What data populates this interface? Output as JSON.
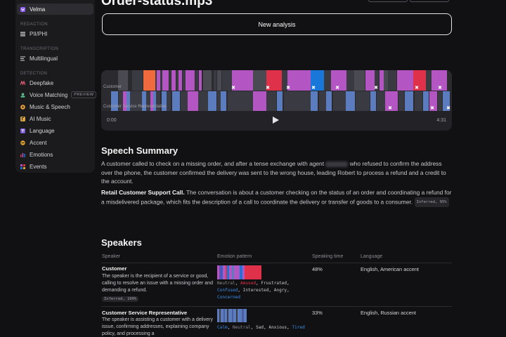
{
  "file_title": "Order-status.mp3",
  "sidebar": {
    "top_item": {
      "label": "Velma",
      "icon": "velma-logo-icon"
    },
    "sections": [
      {
        "heading": "REDACTION",
        "items": [
          {
            "label": "PII/PHI",
            "icon": "bars-icon"
          }
        ]
      },
      {
        "heading": "TRANSCRIPTION",
        "items": [
          {
            "label": "Multilingual",
            "icon": "lines-icon"
          }
        ]
      },
      {
        "heading": "DETECTION",
        "items": [
          {
            "label": "Deepfake",
            "icon": "deepfake-icon"
          },
          {
            "label": "Voice Matching",
            "icon": "voice-matching-icon",
            "badge": "PREVIEW"
          },
          {
            "label": "Music & Speech",
            "icon": "music-speech-icon"
          },
          {
            "label": "AI Music",
            "icon": "ai-music-icon"
          },
          {
            "label": "Language",
            "icon": "language-icon"
          },
          {
            "label": "Accent",
            "icon": "accent-icon"
          },
          {
            "label": "Emotions",
            "icon": "emotions-icon"
          },
          {
            "label": "Events",
            "icon": "events-icon"
          }
        ]
      }
    ]
  },
  "new_analysis_label": "New analysis",
  "player": {
    "track_labels": [
      "Customer",
      "Customer Service Representative"
    ],
    "time_start": "0:00",
    "time_end": "4:31",
    "colors": {
      "purple": "#b455c4",
      "red": "#e0314b",
      "blue": "#1877d8",
      "orange": "#ef6a3d",
      "steel": "#5c7cc0",
      "dark": "#3a3a42",
      "mid": "#4a4a52"
    }
  },
  "summary": {
    "heading": "Speech Summary",
    "p1_before": "A customer called to check on a missing order, and after a tense exchange with agent",
    "p1_redacted_alt": "Robert",
    "p1_after": "who refused to confirm the address over the phone, the customer confirmed the delivery was sent to the wrong house, leading Robert to process a refund and a credit to the account.",
    "p2_bold": "Retail Customer Support Call.",
    "p2_text": "The conversation is about a customer checking on the status of an order and coordinating a refund for a misdelivered package, which fits the description of a call to coordinate the delivery or transfer of goods to a consumer.",
    "p2_chip": "Inferred, 95%"
  },
  "speakers": {
    "heading": "Speakers",
    "columns": [
      "Speaker",
      "Emotion pattern",
      "Speaking time",
      "Language"
    ],
    "rows": [
      {
        "name": "Customer",
        "description": "The speaker is the recipient of a service or good, calling to resolve an issue with a missing order and demanding a refund.",
        "chip": "Inferred, 100%",
        "emotions": [
          {
            "word": "Neutral",
            "color": "#8a8a92"
          },
          {
            "word": "Amused",
            "color": "#e0314b"
          },
          {
            "word": "Frustrated",
            "color": "#c8c8ce"
          },
          {
            "word": "Confused",
            "color": "#3b8ee8"
          },
          {
            "word": "Interested",
            "color": "#c8c8ce"
          },
          {
            "word": "Angry",
            "color": "#c8c8ce"
          },
          {
            "word": "Concerned",
            "color": "#3b8ee8"
          }
        ],
        "speaking_time": "48%",
        "language": "English, American accent"
      },
      {
        "name": "Customer Service Representative",
        "description": "The speaker is assisting a customer with a delivery issue, confirming addresses, explaining company policy, and processing a",
        "emotions": [
          {
            "word": "Calm",
            "color": "#3b8ee8"
          },
          {
            "word": "Neutral",
            "color": "#8a8a92"
          },
          {
            "word": "Sad",
            "color": "#c8c8ce"
          },
          {
            "word": "Anxious",
            "color": "#c8c8ce"
          },
          {
            "word": "Tired",
            "color": "#3b8ee8"
          }
        ],
        "speaking_time": "33%",
        "language": "English, Russian accent"
      }
    ]
  }
}
